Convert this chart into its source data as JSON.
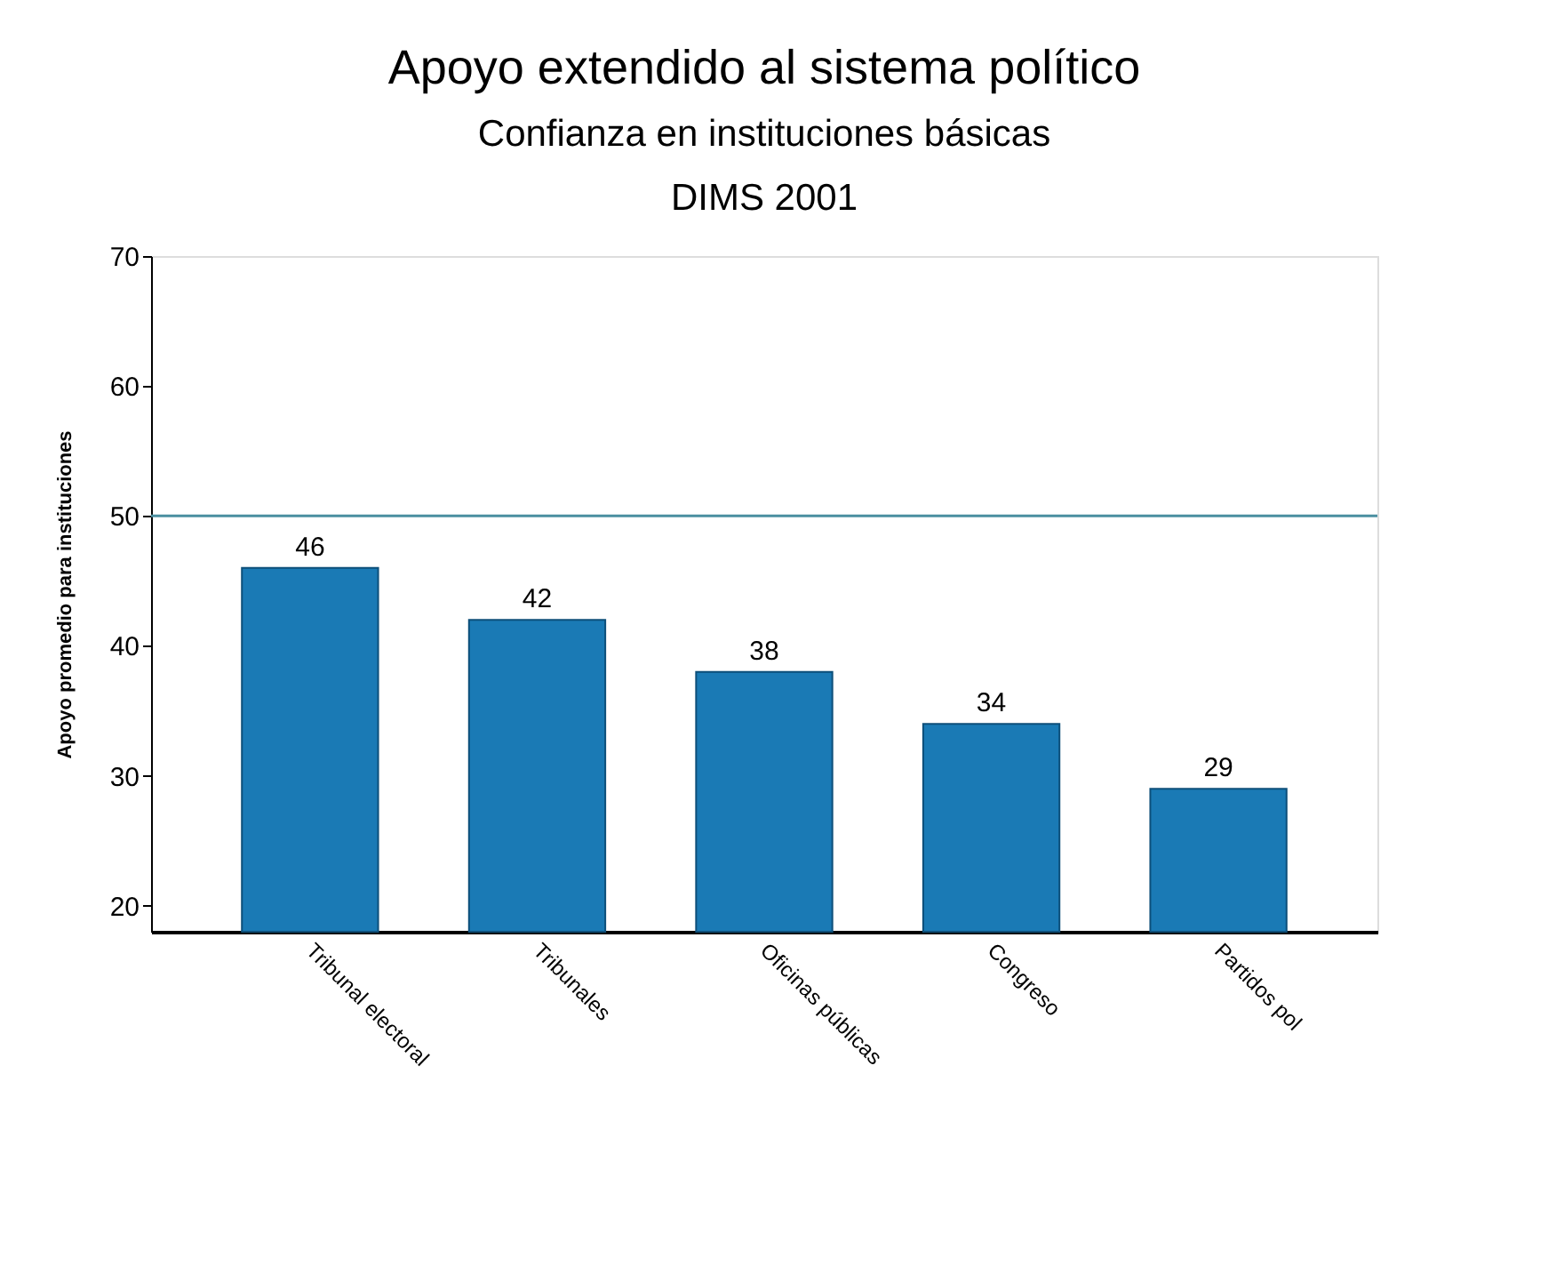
{
  "chart_data": {
    "type": "bar",
    "title": "Apoyo extendido al sistema político",
    "subtitle": "Confianza en instituciones básicas\nDIMS 2001",
    "ylabel": "Apoyo promedio para instituciones",
    "categories": [
      "Tribunal electoral",
      "Tribunales",
      "Oficinas públicas",
      "Congreso",
      "Partidos pol"
    ],
    "values": [
      46,
      42,
      38,
      34,
      29
    ],
    "color": "#1a7ab5",
    "data_labels": true,
    "ylim": [
      18,
      70
    ],
    "yticks": [
      20,
      30,
      40,
      50,
      60,
      70
    ],
    "grid": false,
    "ref_lines": [
      {
        "axis": "y",
        "value": 50,
        "color": "#4a8fa0"
      }
    ]
  }
}
